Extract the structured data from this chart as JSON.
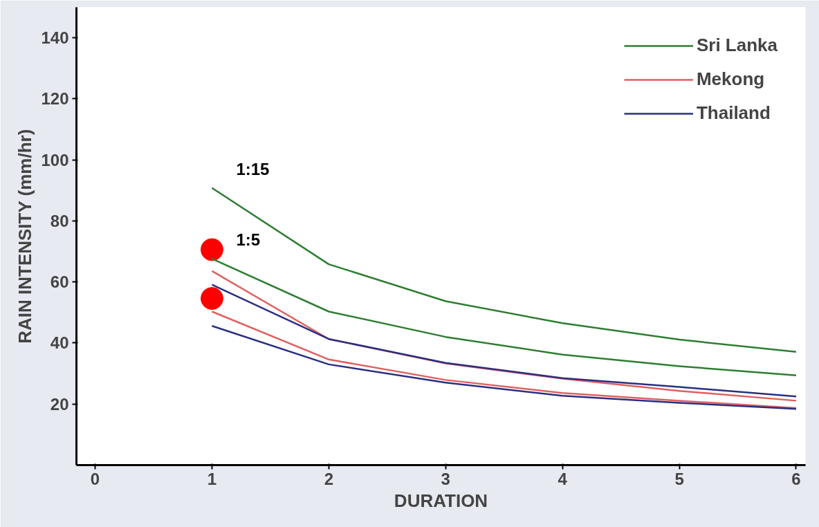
{
  "chart_data": {
    "type": "line",
    "xlabel": "DURATION",
    "ylabel": "RAIN INTENSITY (mm/hr)",
    "x": [
      1,
      2,
      3,
      4,
      5,
      6
    ],
    "series": [
      {
        "name": "Sri Lanka",
        "color": "#2e7d32",
        "values": [
          90.8,
          65.8,
          53.7,
          46.5,
          41.1,
          37.1
        ]
      },
      {
        "color": "#2e7d32",
        "values": [
          67.6,
          50.3,
          42.0,
          36.2,
          32.4,
          29.4
        ]
      },
      {
        "name": "Mekong",
        "color": "#e06060",
        "values": [
          63.6,
          41.3,
          33.3,
          28.3,
          24.3,
          21.1
        ]
      },
      {
        "name": "Thailand",
        "color": "#2a2f80",
        "values": [
          59.1,
          41.3,
          33.5,
          28.5,
          25.6,
          22.5
        ]
      },
      {
        "color": "#e06060",
        "values": [
          50.3,
          34.6,
          27.9,
          23.6,
          21.1,
          18.7
        ]
      },
      {
        "color": "#2a2f80",
        "values": [
          45.6,
          33.0,
          27.0,
          22.7,
          20.4,
          18.4
        ]
      },
      {
        "type": "scatter",
        "marker": "circle",
        "color": "#ff0000",
        "x": [
          1,
          1
        ],
        "values": [
          70.6,
          54.6
        ]
      }
    ],
    "annotations": [
      "1:15",
      "1:5"
    ],
    "xlim": [
      -0.16,
      6.08
    ],
    "ylim": [
      0,
      150
    ],
    "xticks": [
      0,
      1,
      2,
      3,
      4,
      5,
      6
    ],
    "yticks": [
      20,
      40,
      60,
      80,
      100,
      120,
      140
    ],
    "grid": false,
    "legend": "top right",
    "marker": "none",
    "line_style": "solid"
  }
}
